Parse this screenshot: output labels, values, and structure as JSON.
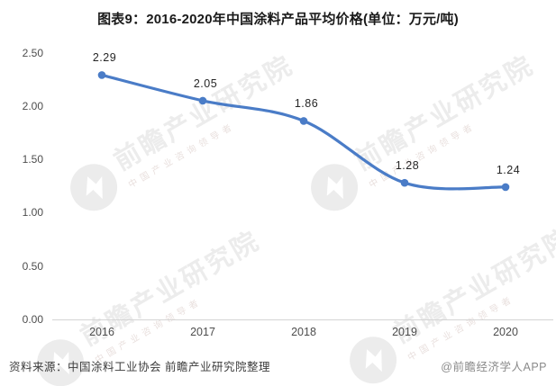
{
  "title": "图表9：2016-2020年中国涂料产品平均价格(单位：万元/吨)",
  "chart_data": {
    "type": "line",
    "categories": [
      "2016",
      "2017",
      "2018",
      "2019",
      "2020"
    ],
    "values": [
      2.29,
      2.05,
      1.86,
      1.28,
      1.24
    ],
    "value_labels": [
      "2.29",
      "2.05",
      "1.86",
      "1.28",
      "1.24"
    ],
    "ylim": [
      0,
      2.5
    ],
    "ytick_labels": [
      "0.00",
      "0.50",
      "1.00",
      "1.50",
      "2.00",
      "2.50"
    ],
    "ytick_values": [
      0,
      0.5,
      1.0,
      1.5,
      2.0,
      2.5
    ],
    "grid": false,
    "legend_position": "none",
    "smooth": true,
    "line_color": "#4a7cc7",
    "marker_color": "#4a7cc7",
    "title": "图表9：2016-2020年中国涂料产品平均价格(单位：万元/吨)"
  },
  "footer": {
    "source": "资料来源：中国涂料工业协会 前瞻产业研究院整理",
    "credit": "@前瞻经济学人APP"
  },
  "watermark": {
    "brand": "前瞻产业研究院",
    "tagline": "中国产业咨询领导者"
  }
}
